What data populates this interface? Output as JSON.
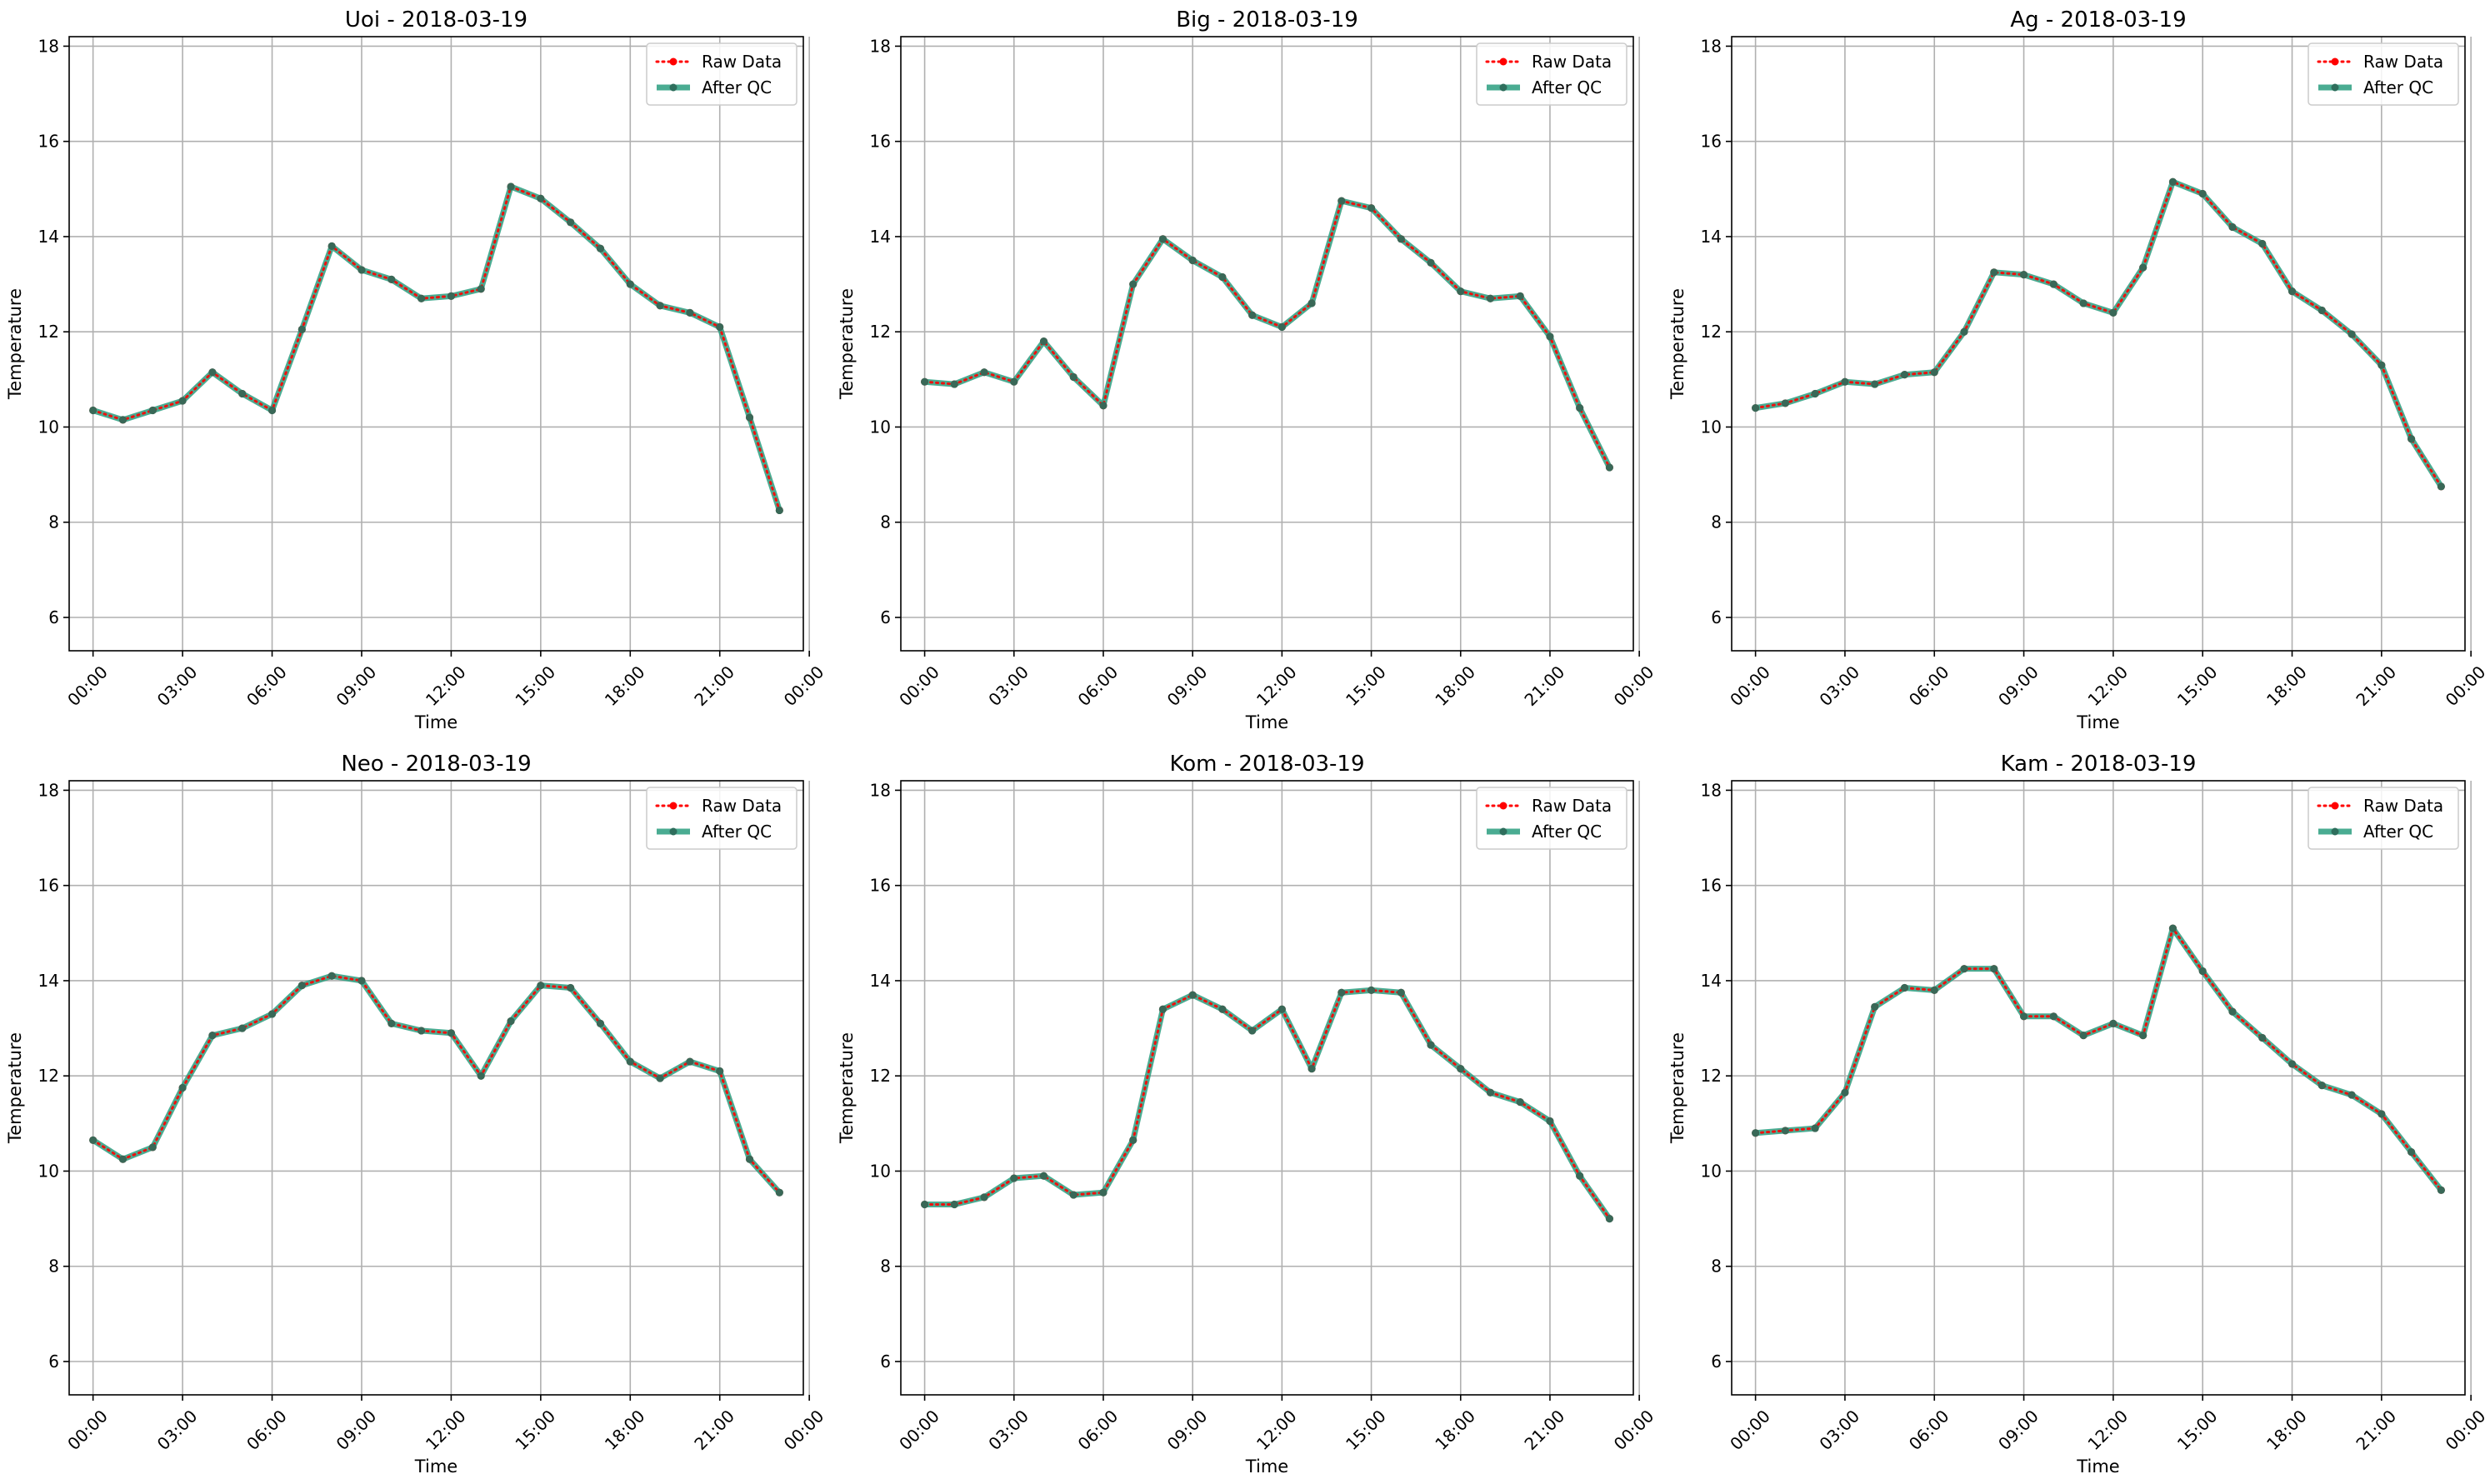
{
  "figure": {
    "background": "#ffffff",
    "grid": true,
    "colors": {
      "raw": "#ff0000",
      "qc": "#2a9d7f",
      "grid": "#b0b0b0",
      "axes": "#000000",
      "legend_border": "#cccccc"
    },
    "legend_placement": "top-right"
  },
  "chart_data": [
    {
      "type": "line",
      "title": "Uoi - 2018-03-19",
      "xlabel": "Time",
      "ylabel": "Temperature",
      "ylim": [
        5.3,
        18.2
      ],
      "yticks": [
        6,
        8,
        10,
        12,
        14,
        16,
        18
      ],
      "xlim": [
        -0.8,
        23.8
      ],
      "xticks": [
        0,
        3,
        6,
        9,
        12,
        15,
        18,
        21,
        24
      ],
      "xtick_labels": [
        "00:00",
        "03:00",
        "06:00",
        "09:00",
        "12:00",
        "15:00",
        "18:00",
        "21:00",
        "00:00"
      ],
      "x": [
        "00:00",
        "01:00",
        "02:00",
        "03:00",
        "04:00",
        "05:00",
        "06:00",
        "07:00",
        "08:00",
        "09:00",
        "10:00",
        "11:00",
        "12:00",
        "13:00",
        "14:00",
        "15:00",
        "16:00",
        "17:00",
        "18:00",
        "19:00",
        "20:00",
        "21:00",
        "22:00",
        "23:00"
      ],
      "series": [
        {
          "name": "Raw Data",
          "values": [
            10.35,
            10.15,
            10.35,
            10.55,
            11.15,
            10.7,
            10.35,
            12.05,
            13.8,
            13.3,
            13.1,
            12.7,
            12.75,
            12.9,
            15.05,
            14.8,
            14.3,
            13.75,
            13.0,
            12.55,
            12.4,
            12.1,
            10.2,
            8.25
          ]
        },
        {
          "name": "After QC",
          "values": [
            10.35,
            10.15,
            10.35,
            10.55,
            11.15,
            10.7,
            10.35,
            12.05,
            13.8,
            13.3,
            13.1,
            12.7,
            12.75,
            12.9,
            15.05,
            14.8,
            14.3,
            13.75,
            13.0,
            12.55,
            12.4,
            12.1,
            10.2,
            8.25
          ]
        }
      ]
    },
    {
      "type": "line",
      "title": "Big - 2018-03-19",
      "xlabel": "Time",
      "ylabel": "Temperature",
      "ylim": [
        5.3,
        18.2
      ],
      "yticks": [
        6,
        8,
        10,
        12,
        14,
        16,
        18
      ],
      "xlim": [
        -0.8,
        23.8
      ],
      "xticks": [
        0,
        3,
        6,
        9,
        12,
        15,
        18,
        21,
        24
      ],
      "xtick_labels": [
        "00:00",
        "03:00",
        "06:00",
        "09:00",
        "12:00",
        "15:00",
        "18:00",
        "21:00",
        "00:00"
      ],
      "x": [
        "00:00",
        "01:00",
        "02:00",
        "03:00",
        "04:00",
        "05:00",
        "06:00",
        "07:00",
        "08:00",
        "09:00",
        "10:00",
        "11:00",
        "12:00",
        "13:00",
        "14:00",
        "15:00",
        "16:00",
        "17:00",
        "18:00",
        "19:00",
        "20:00",
        "21:00",
        "22:00",
        "23:00"
      ],
      "series": [
        {
          "name": "Raw Data",
          "values": [
            10.95,
            10.9,
            11.15,
            10.95,
            11.8,
            11.05,
            10.45,
            13.0,
            13.95,
            13.5,
            13.15,
            12.35,
            12.1,
            12.6,
            14.75,
            14.6,
            13.95,
            13.45,
            12.85,
            12.7,
            12.75,
            11.9,
            10.4,
            9.15
          ]
        },
        {
          "name": "After QC",
          "values": [
            10.95,
            10.9,
            11.15,
            10.95,
            11.8,
            11.05,
            10.45,
            13.0,
            13.95,
            13.5,
            13.15,
            12.35,
            12.1,
            12.6,
            14.75,
            14.6,
            13.95,
            13.45,
            12.85,
            12.7,
            12.75,
            11.9,
            10.4,
            9.15
          ]
        }
      ]
    },
    {
      "type": "line",
      "title": "Ag - 2018-03-19",
      "xlabel": "Time",
      "ylabel": "Temperature",
      "ylim": [
        5.3,
        18.2
      ],
      "yticks": [
        6,
        8,
        10,
        12,
        14,
        16,
        18
      ],
      "xlim": [
        -0.8,
        23.8
      ],
      "xticks": [
        0,
        3,
        6,
        9,
        12,
        15,
        18,
        21,
        24
      ],
      "xtick_labels": [
        "00:00",
        "03:00",
        "06:00",
        "09:00",
        "12:00",
        "15:00",
        "18:00",
        "21:00",
        "00:00"
      ],
      "x": [
        "00:00",
        "01:00",
        "02:00",
        "03:00",
        "04:00",
        "05:00",
        "06:00",
        "07:00",
        "08:00",
        "09:00",
        "10:00",
        "11:00",
        "12:00",
        "13:00",
        "14:00",
        "15:00",
        "16:00",
        "17:00",
        "18:00",
        "19:00",
        "20:00",
        "21:00",
        "22:00",
        "23:00"
      ],
      "series": [
        {
          "name": "Raw Data",
          "values": [
            10.4,
            10.5,
            10.7,
            10.95,
            10.9,
            11.1,
            11.15,
            12.0,
            13.25,
            13.2,
            13.0,
            12.6,
            12.4,
            13.35,
            15.15,
            14.9,
            14.2,
            13.85,
            12.85,
            12.45,
            11.95,
            11.3,
            9.75,
            8.75
          ]
        },
        {
          "name": "After QC",
          "values": [
            10.4,
            10.5,
            10.7,
            10.95,
            10.9,
            11.1,
            11.15,
            12.0,
            13.25,
            13.2,
            13.0,
            12.6,
            12.4,
            13.35,
            15.15,
            14.9,
            14.2,
            13.85,
            12.85,
            12.45,
            11.95,
            11.3,
            9.75,
            8.75
          ]
        }
      ]
    },
    {
      "type": "line",
      "title": "Neo - 2018-03-19",
      "xlabel": "Time",
      "ylabel": "Temperature",
      "ylim": [
        5.3,
        18.2
      ],
      "yticks": [
        6,
        8,
        10,
        12,
        14,
        16,
        18
      ],
      "xlim": [
        -0.8,
        23.8
      ],
      "xticks": [
        0,
        3,
        6,
        9,
        12,
        15,
        18,
        21,
        24
      ],
      "xtick_labels": [
        "00:00",
        "03:00",
        "06:00",
        "09:00",
        "12:00",
        "15:00",
        "18:00",
        "21:00",
        "00:00"
      ],
      "x": [
        "00:00",
        "01:00",
        "02:00",
        "03:00",
        "04:00",
        "05:00",
        "06:00",
        "07:00",
        "08:00",
        "09:00",
        "10:00",
        "11:00",
        "12:00",
        "13:00",
        "14:00",
        "15:00",
        "16:00",
        "17:00",
        "18:00",
        "19:00",
        "20:00",
        "21:00",
        "22:00",
        "23:00"
      ],
      "series": [
        {
          "name": "Raw Data",
          "values": [
            10.65,
            10.25,
            10.5,
            11.75,
            12.85,
            13.0,
            13.3,
            13.9,
            14.1,
            14.0,
            13.1,
            12.95,
            12.9,
            12.0,
            13.15,
            13.9,
            13.85,
            13.1,
            12.3,
            11.95,
            12.3,
            12.1,
            10.25,
            9.55
          ]
        },
        {
          "name": "After QC",
          "values": [
            10.65,
            10.25,
            10.5,
            11.75,
            12.85,
            13.0,
            13.3,
            13.9,
            14.1,
            14.0,
            13.1,
            12.95,
            12.9,
            12.0,
            13.15,
            13.9,
            13.85,
            13.1,
            12.3,
            11.95,
            12.3,
            12.1,
            10.25,
            9.55
          ]
        }
      ]
    },
    {
      "type": "line",
      "title": "Kom - 2018-03-19",
      "xlabel": "Time",
      "ylabel": "Temperature",
      "ylim": [
        5.3,
        18.2
      ],
      "yticks": [
        6,
        8,
        10,
        12,
        14,
        16,
        18
      ],
      "xlim": [
        -0.8,
        23.8
      ],
      "xticks": [
        0,
        3,
        6,
        9,
        12,
        15,
        18,
        21,
        24
      ],
      "xtick_labels": [
        "00:00",
        "03:00",
        "06:00",
        "09:00",
        "12:00",
        "15:00",
        "18:00",
        "21:00",
        "00:00"
      ],
      "x": [
        "00:00",
        "01:00",
        "02:00",
        "03:00",
        "04:00",
        "05:00",
        "06:00",
        "07:00",
        "08:00",
        "09:00",
        "10:00",
        "11:00",
        "12:00",
        "13:00",
        "14:00",
        "15:00",
        "16:00",
        "17:00",
        "18:00",
        "19:00",
        "20:00",
        "21:00",
        "22:00",
        "23:00"
      ],
      "series": [
        {
          "name": "Raw Data",
          "values": [
            9.3,
            9.3,
            9.45,
            9.85,
            9.9,
            9.5,
            9.55,
            10.65,
            13.4,
            13.7,
            13.4,
            12.95,
            13.4,
            12.15,
            13.75,
            13.8,
            13.75,
            12.65,
            12.15,
            11.65,
            11.45,
            11.05,
            9.9,
            9.0
          ]
        },
        {
          "name": "After QC",
          "values": [
            9.3,
            9.3,
            9.45,
            9.85,
            9.9,
            9.5,
            9.55,
            10.65,
            13.4,
            13.7,
            13.4,
            12.95,
            13.4,
            12.15,
            13.75,
            13.8,
            13.75,
            12.65,
            12.15,
            11.65,
            11.45,
            11.05,
            9.9,
            9.0
          ]
        }
      ]
    },
    {
      "type": "line",
      "title": "Kam - 2018-03-19",
      "xlabel": "Time",
      "ylabel": "Temperature",
      "ylim": [
        5.3,
        18.2
      ],
      "yticks": [
        6,
        8,
        10,
        12,
        14,
        16,
        18
      ],
      "xlim": [
        -0.8,
        23.8
      ],
      "xticks": [
        0,
        3,
        6,
        9,
        12,
        15,
        18,
        21,
        24
      ],
      "xtick_labels": [
        "00:00",
        "03:00",
        "06:00",
        "09:00",
        "12:00",
        "15:00",
        "18:00",
        "21:00",
        "00:00"
      ],
      "x": [
        "00:00",
        "01:00",
        "02:00",
        "03:00",
        "04:00",
        "05:00",
        "06:00",
        "07:00",
        "08:00",
        "09:00",
        "10:00",
        "11:00",
        "12:00",
        "13:00",
        "14:00",
        "15:00",
        "16:00",
        "17:00",
        "18:00",
        "19:00",
        "20:00",
        "21:00",
        "22:00",
        "23:00"
      ],
      "series": [
        {
          "name": "Raw Data",
          "values": [
            10.8,
            10.85,
            10.9,
            11.65,
            13.45,
            13.85,
            13.8,
            14.25,
            14.25,
            13.25,
            13.25,
            12.85,
            13.1,
            12.85,
            15.1,
            14.2,
            13.35,
            12.8,
            12.25,
            11.8,
            11.6,
            11.2,
            10.4,
            9.6
          ]
        },
        {
          "name": "After QC",
          "values": [
            10.8,
            10.85,
            10.9,
            11.65,
            13.45,
            13.85,
            13.8,
            14.25,
            14.25,
            13.25,
            13.25,
            12.85,
            13.1,
            12.85,
            15.1,
            14.2,
            13.35,
            12.8,
            12.25,
            11.8,
            11.6,
            11.2,
            10.4,
            9.6
          ]
        }
      ]
    }
  ]
}
